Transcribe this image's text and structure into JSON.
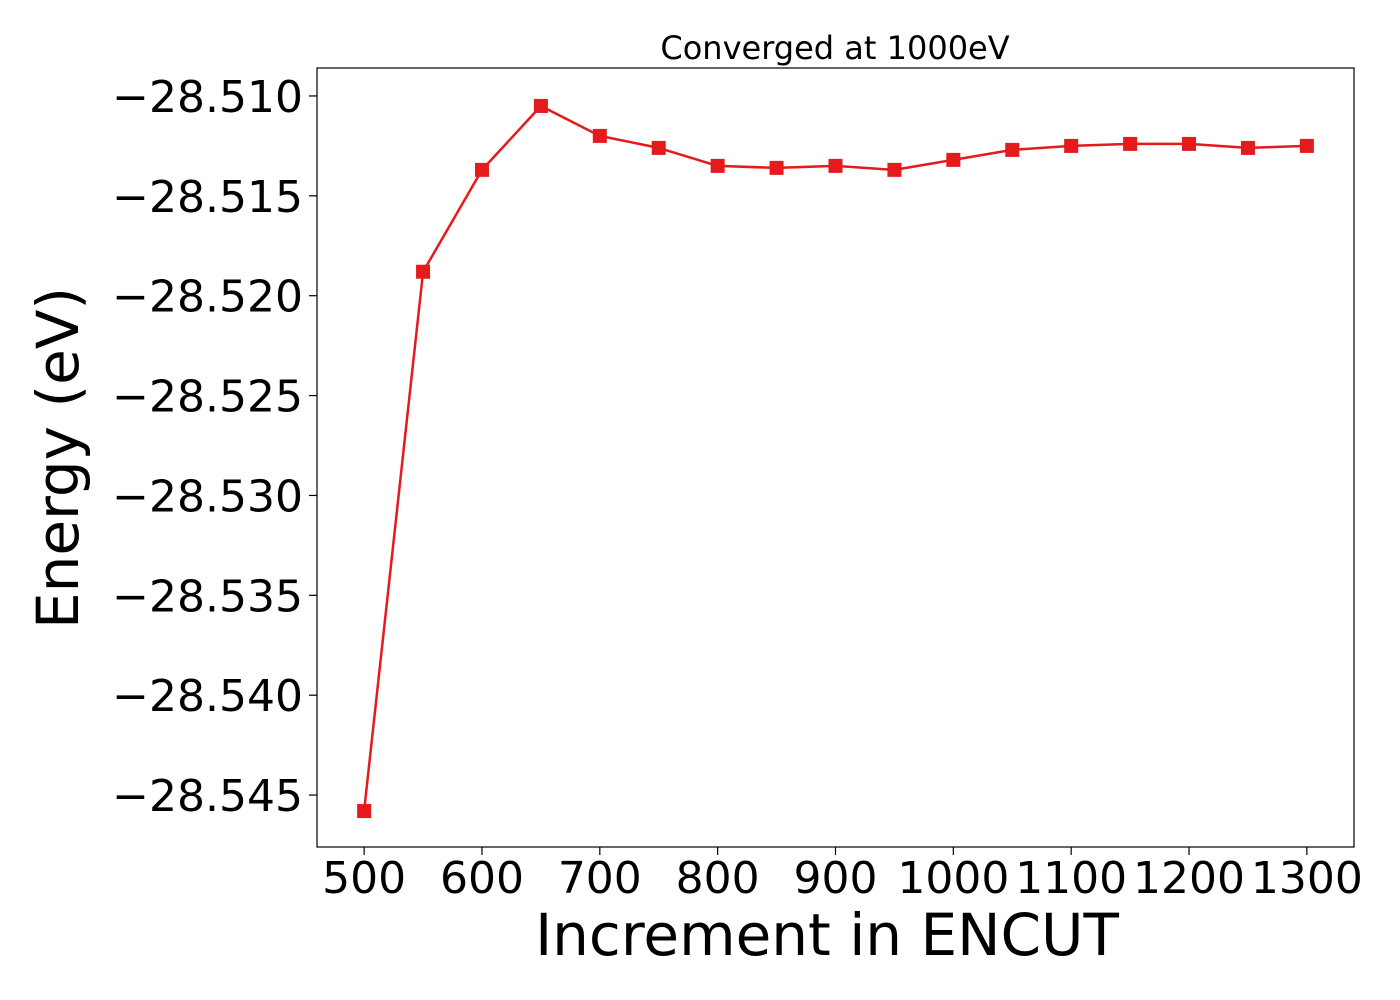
{
  "chart_data": {
    "type": "line",
    "title": "Converged at 1000eV",
    "xlabel": "Increment in ENCUT",
    "ylabel": "Energy (eV)",
    "x": [
      500,
      550,
      600,
      650,
      700,
      750,
      800,
      850,
      900,
      950,
      1000,
      1050,
      1100,
      1150,
      1200,
      1250,
      1300
    ],
    "series": [
      {
        "values": [
          -28.5458,
          -28.5188,
          -28.5137,
          -28.5105,
          -28.512,
          -28.5126,
          -28.5135,
          -28.5136,
          -28.5135,
          -28.5137,
          -28.5132,
          -28.5127,
          -28.5125,
          -28.5124,
          -28.5124,
          -28.5126,
          -28.5125
        ],
        "color": "#e41a1c",
        "marker": "square"
      }
    ],
    "x_ticks": [
      500,
      600,
      700,
      800,
      900,
      1000,
      1100,
      1200,
      1300
    ],
    "x_tick_labels": [
      "500",
      "600",
      "700",
      "800",
      "900",
      "1000",
      "1100",
      "1200",
      "1300"
    ],
    "y_ticks": [
      -28.51,
      -28.515,
      -28.52,
      -28.525,
      -28.53,
      -28.535,
      -28.54,
      -28.545
    ],
    "y_tick_labels": [
      "−28.510",
      "−28.515",
      "−28.520",
      "−28.525",
      "−28.530",
      "−28.535",
      "−28.540",
      "−28.545"
    ],
    "xlim": [
      460,
      1340
    ],
    "ylim": [
      -28.5476,
      -28.5086
    ],
    "grid": false,
    "legend": "none"
  }
}
